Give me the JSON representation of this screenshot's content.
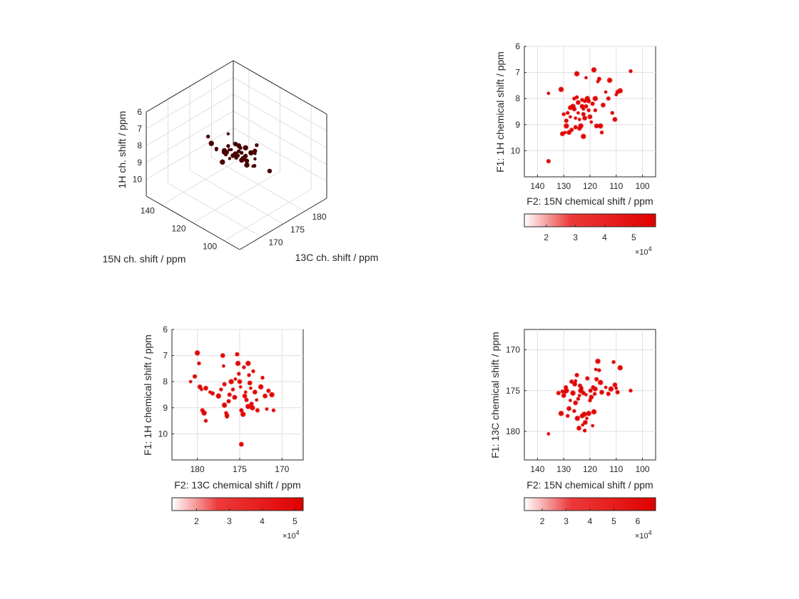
{
  "colors": {
    "peak": "#e00000",
    "peak3d": "#4a0202",
    "grid": "#dfdfdf",
    "axis": "#262626"
  },
  "chart_data": [
    {
      "type": "scatter",
      "projection": "3d",
      "xlabel": "15N ch. shift / ppm",
      "ylabel": "13C ch. shift / ppm",
      "zlabel": "1H ch. shift / ppm",
      "xlim": [
        90,
        150
      ],
      "ylim": [
        165,
        185
      ],
      "zlim": [
        6,
        11
      ],
      "x_ticks": [
        "100",
        "120",
        "140"
      ],
      "y_ticks": [
        "170",
        "175",
        "180"
      ],
      "z_ticks": [
        "6",
        "7",
        "8",
        "9",
        "10"
      ],
      "grid": true,
      "points": [
        {
          "n": 129.0,
          "c": 173.6,
          "h": 8.45
        },
        {
          "n": 127.5,
          "c": 174.9,
          "h": 8.7
        },
        {
          "n": 126.0,
          "c": 176.3,
          "h": 9.05
        },
        {
          "n": 124.5,
          "c": 172.0,
          "h": 7.9
        },
        {
          "n": 123.0,
          "c": 174.4,
          "h": 8.25
        },
        {
          "n": 122.0,
          "c": 177.8,
          "h": 8.6
        },
        {
          "n": 121.0,
          "c": 173.1,
          "h": 8.1
        },
        {
          "n": 120.0,
          "c": 175.5,
          "h": 8.35
        },
        {
          "n": 119.0,
          "c": 178.9,
          "h": 8.95
        },
        {
          "n": 118.0,
          "c": 171.5,
          "h": 7.6
        },
        {
          "n": 117.0,
          "c": 176.0,
          "h": 8.55
        },
        {
          "n": 116.0,
          "c": 173.9,
          "h": 8.15
        },
        {
          "n": 115.0,
          "c": 177.0,
          "h": 9.2
        },
        {
          "n": 114.0,
          "c": 172.6,
          "h": 7.75
        },
        {
          "n": 112.5,
          "c": 174.7,
          "h": 8.4
        },
        {
          "n": 111.0,
          "c": 175.9,
          "h": 8.8
        },
        {
          "n": 109.5,
          "c": 171.2,
          "h": 7.3
        },
        {
          "n": 108.0,
          "c": 172.3,
          "h": 7.65
        },
        {
          "n": 106.0,
          "c": 177.6,
          "h": 9.1
        },
        {
          "n": 104.5,
          "c": 174.1,
          "h": 6.95
        },
        {
          "n": 131.0,
          "c": 176.5,
          "h": 9.3
        },
        {
          "n": 130.0,
          "c": 172.8,
          "h": 8.0
        },
        {
          "n": 128.0,
          "c": 178.4,
          "h": 8.9
        },
        {
          "n": 126.5,
          "c": 170.8,
          "h": 7.1
        },
        {
          "n": 125.0,
          "c": 175.2,
          "h": 9.0
        },
        {
          "n": 123.5,
          "c": 179.6,
          "h": 9.25
        },
        {
          "n": 122.5,
          "c": 173.4,
          "h": 8.3
        },
        {
          "n": 121.5,
          "c": 176.7,
          "h": 8.7
        },
        {
          "n": 120.5,
          "c": 174.0,
          "h": 8.05
        },
        {
          "n": 119.5,
          "c": 177.2,
          "h": 9.4
        },
        {
          "n": 118.5,
          "c": 175.0,
          "h": 7.85
        },
        {
          "n": 117.5,
          "c": 172.2,
          "h": 7.4
        },
        {
          "n": 116.5,
          "c": 178.0,
          "h": 9.0
        },
        {
          "n": 115.5,
          "c": 174.6,
          "h": 8.5
        },
        {
          "n": 113.5,
          "c": 176.9,
          "h": 8.2
        },
        {
          "n": 135.8,
          "c": 180.6,
          "h": 10.35
        },
        {
          "n": 127.0,
          "c": 175.6,
          "h": 7.7
        },
        {
          "n": 124.0,
          "c": 173.2,
          "h": 8.85
        },
        {
          "n": 121.8,
          "c": 175.4,
          "h": 8.0
        },
        {
          "n": 120.8,
          "c": 176.2,
          "h": 8.3
        }
      ]
    },
    {
      "type": "scatter",
      "title": "",
      "xlabel": "F2: 15N chemical shift / ppm",
      "ylabel": "F1: 1H chemical shift / ppm",
      "xlim": [
        145,
        95
      ],
      "ylim": [
        6,
        11
      ],
      "x_ticks": [
        "140",
        "130",
        "120",
        "110",
        "100"
      ],
      "y_ticks": [
        "6",
        "7",
        "8",
        "9",
        "10"
      ],
      "grid": true,
      "colorbar": {
        "ticks": [
          "2",
          "3",
          "4",
          "5"
        ],
        "range": [
          12500,
          57500
        ],
        "exponent": "×10",
        "exponent_power": "4"
      },
      "points": [
        [
          135.8,
          7.8
        ],
        [
          135.8,
          10.4
        ],
        [
          131.0,
          7.65
        ],
        [
          130.0,
          8.6
        ],
        [
          130.5,
          9.35
        ],
        [
          129.5,
          9.3
        ],
        [
          129.0,
          8.85
        ],
        [
          129.0,
          9.05
        ],
        [
          128.5,
          8.55
        ],
        [
          128.0,
          9.3
        ],
        [
          127.5,
          8.7
        ],
        [
          127.0,
          9.2
        ],
        [
          126.5,
          8.3
        ],
        [
          126.0,
          8.0
        ],
        [
          126.0,
          8.4
        ],
        [
          125.5,
          8.75
        ],
        [
          125.5,
          9.1
        ],
        [
          125.0,
          7.05
        ],
        [
          125.0,
          7.95
        ],
        [
          124.5,
          8.15
        ],
        [
          124.5,
          8.55
        ],
        [
          124.0,
          9.15
        ],
        [
          123.5,
          9.05
        ],
        [
          123.0,
          8.05
        ],
        [
          123.0,
          8.3
        ],
        [
          122.5,
          8.4
        ],
        [
          122.5,
          8.6
        ],
        [
          122.5,
          9.45
        ],
        [
          122.0,
          8.1
        ],
        [
          122.0,
          8.75
        ],
        [
          121.5,
          7.2
        ],
        [
          121.5,
          8.3
        ],
        [
          121.0,
          8.0
        ],
        [
          120.5,
          8.45
        ],
        [
          120.0,
          8.7
        ],
        [
          119.5,
          8.9
        ],
        [
          119.0,
          8.2
        ],
        [
          118.5,
          6.9
        ],
        [
          118.0,
          8.45
        ],
        [
          117.5,
          9.05
        ],
        [
          117.0,
          7.35
        ],
        [
          116.5,
          7.25
        ],
        [
          116.0,
          9.05
        ],
        [
          115.5,
          9.3
        ],
        [
          115.0,
          8.25
        ],
        [
          114.0,
          7.75
        ],
        [
          113.0,
          8.0
        ],
        [
          112.5,
          7.3
        ],
        [
          111.5,
          8.55
        ],
        [
          110.5,
          8.8
        ],
        [
          110.0,
          7.85
        ],
        [
          109.5,
          7.75
        ],
        [
          108.5,
          7.7
        ],
        [
          104.5,
          6.95
        ],
        [
          127.5,
          8.35
        ],
        [
          124.0,
          8.8
        ],
        [
          120.5,
          8.1
        ],
        [
          118.0,
          8.0
        ]
      ]
    },
    {
      "type": "scatter",
      "xlabel": "F2: 13C chemical shift / ppm",
      "ylabel": "F1: 1H chemical shift / ppm",
      "xlim": [
        183,
        167.5
      ],
      "ylim": [
        6,
        11
      ],
      "x_ticks": [
        "180",
        "175",
        "170"
      ],
      "y_ticks": [
        "6",
        "7",
        "8",
        "9",
        "10"
      ],
      "grid": true,
      "colorbar": {
        "ticks": [
          "2",
          "3",
          "4",
          "5"
        ],
        "range": [
          12500,
          52500
        ],
        "exponent": "×10",
        "exponent_power": "4"
      },
      "points": [
        [
          180.8,
          8.0
        ],
        [
          180.3,
          7.8
        ],
        [
          180.0,
          6.9
        ],
        [
          179.8,
          7.3
        ],
        [
          179.7,
          8.2
        ],
        [
          179.5,
          8.3
        ],
        [
          179.4,
          9.1
        ],
        [
          179.2,
          9.2
        ],
        [
          179.0,
          9.5
        ],
        [
          179.0,
          8.25
        ],
        [
          178.5,
          8.4
        ],
        [
          178.2,
          8.45
        ],
        [
          177.5,
          8.55
        ],
        [
          177.2,
          8.3
        ],
        [
          177.0,
          7.0
        ],
        [
          176.9,
          7.4
        ],
        [
          176.8,
          8.1
        ],
        [
          176.8,
          8.9
        ],
        [
          176.6,
          9.2
        ],
        [
          176.5,
          9.3
        ],
        [
          176.5,
          9.35
        ],
        [
          176.2,
          8.5
        ],
        [
          176.0,
          8.0
        ],
        [
          175.8,
          8.3
        ],
        [
          175.6,
          8.6
        ],
        [
          175.5,
          7.9
        ],
        [
          175.3,
          6.95
        ],
        [
          175.2,
          7.3
        ],
        [
          175.1,
          7.7
        ],
        [
          175.0,
          8.0
        ],
        [
          174.9,
          8.2
        ],
        [
          174.8,
          9.1
        ],
        [
          174.6,
          9.25
        ],
        [
          174.5,
          7.45
        ],
        [
          174.4,
          8.55
        ],
        [
          174.3,
          8.4
        ],
        [
          174.2,
          8.7
        ],
        [
          174.0,
          7.3
        ],
        [
          173.9,
          7.75
        ],
        [
          173.8,
          8.05
        ],
        [
          173.7,
          8.25
        ],
        [
          173.6,
          8.85
        ],
        [
          173.5,
          9.0
        ],
        [
          173.4,
          7.6
        ],
        [
          173.2,
          8.4
        ],
        [
          173.0,
          8.7
        ],
        [
          172.9,
          9.1
        ],
        [
          172.5,
          8.2
        ],
        [
          172.3,
          7.85
        ],
        [
          172.0,
          8.55
        ],
        [
          171.8,
          9.05
        ],
        [
          171.6,
          8.35
        ],
        [
          171.2,
          8.5
        ],
        [
          171.0,
          9.1
        ],
        [
          174.8,
          10.4
        ],
        [
          175.5,
          8.6
        ],
        [
          176.3,
          8.75
        ],
        [
          174.0,
          8.95
        ]
      ]
    },
    {
      "type": "scatter",
      "xlabel": "F2: 15N chemical shift / ppm",
      "ylabel": "F1: 13C chemical shift / ppm",
      "xlim": [
        145,
        95
      ],
      "ylim": [
        167.5,
        183.5
      ],
      "x_ticks": [
        "140",
        "130",
        "120",
        "110",
        "100"
      ],
      "y_ticks": [
        "170",
        "175",
        "180"
      ],
      "grid": true,
      "colorbar": {
        "ticks": [
          "2",
          "3",
          "4",
          "5",
          "6"
        ],
        "range": [
          12500,
          67500
        ],
        "exponent": "×10",
        "exponent_power": "4"
      },
      "points": [
        [
          135.8,
          180.3
        ],
        [
          132.0,
          175.3
        ],
        [
          131.0,
          177.8
        ],
        [
          130.5,
          175.1
        ],
        [
          130.0,
          175.6
        ],
        [
          129.5,
          175.2
        ],
        [
          129.2,
          174.6
        ],
        [
          129.0,
          175.0
        ],
        [
          128.5,
          178.1
        ],
        [
          128.0,
          177.2
        ],
        [
          127.5,
          176.2
        ],
        [
          127.0,
          173.9
        ],
        [
          126.5,
          175.3
        ],
        [
          126.0,
          177.5
        ],
        [
          125.8,
          174.2
        ],
        [
          125.5,
          173.8
        ],
        [
          125.0,
          173.1
        ],
        [
          124.8,
          178.4
        ],
        [
          124.5,
          176.0
        ],
        [
          124.2,
          179.6
        ],
        [
          124.0,
          175.6
        ],
        [
          123.8,
          174.4
        ],
        [
          123.5,
          175.0
        ],
        [
          123.2,
          174.7
        ],
        [
          123.0,
          178.1
        ],
        [
          122.8,
          179.2
        ],
        [
          122.5,
          175.3
        ],
        [
          122.2,
          177.9
        ],
        [
          122.0,
          179.9
        ],
        [
          121.8,
          178.9
        ],
        [
          121.5,
          175.5
        ],
        [
          121.0,
          173.5
        ],
        [
          120.5,
          177.8
        ],
        [
          120.0,
          176.2
        ],
        [
          119.5,
          175.8
        ],
        [
          119.0,
          179.3
        ],
        [
          118.8,
          174.6
        ],
        [
          118.5,
          177.6
        ],
        [
          118.2,
          175.4
        ],
        [
          118.0,
          174.8
        ],
        [
          117.8,
          172.4
        ],
        [
          117.5,
          173.6
        ],
        [
          117.0,
          171.4
        ],
        [
          116.5,
          172.5
        ],
        [
          115.5,
          175.2
        ],
        [
          114.0,
          174.6
        ],
        [
          113.0,
          175.4
        ],
        [
          112.0,
          174.8
        ],
        [
          111.0,
          171.5
        ],
        [
          110.5,
          174.3
        ],
        [
          110.0,
          174.7
        ],
        [
          109.5,
          175.2
        ],
        [
          108.5,
          172.2
        ],
        [
          104.5,
          175.0
        ],
        [
          125.5,
          176.5
        ],
        [
          121.2,
          178.4
        ],
        [
          119.8,
          175.0
        ],
        [
          116.0,
          174.0
        ]
      ]
    }
  ]
}
